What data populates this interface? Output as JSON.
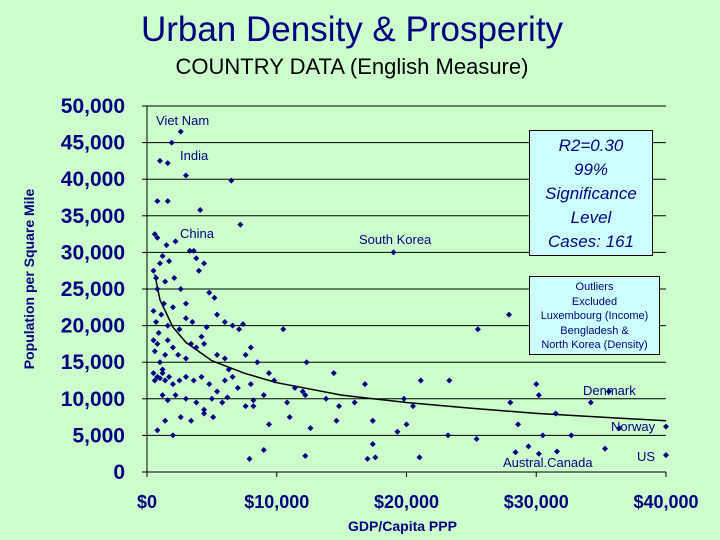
{
  "header": {
    "title": "Urban Density & Prosperity",
    "subtitle": "COUNTRY DATA (English Measure)"
  },
  "stats_box": {
    "lines": [
      "R2=0.30",
      "99%",
      "Significance",
      "Level",
      "Cases: 161"
    ]
  },
  "outliers_box": {
    "lines": [
      "Outliers",
      "Excluded",
      "Luxembourg (Income)",
      "Bengladesh &",
      "North Korea (Density)"
    ]
  },
  "colors": {
    "background": "#ccffcc",
    "marker": "#000080",
    "grid": "#000000",
    "box": "#ccffff"
  },
  "chart_data": {
    "type": "scatter",
    "xlabel": "GDP/Capita PPP",
    "ylabel": "Population per Square Mile",
    "xlim": [
      0,
      40000
    ],
    "ylim": [
      0,
      50000
    ],
    "x_ticks": [
      "$0",
      "$10,000",
      "$20,000",
      "$30,000",
      "$40,000"
    ],
    "y_ticks": [
      "0",
      "5,000",
      "10,000",
      "15,000",
      "20,000",
      "25,000",
      "30,000",
      "35,000",
      "40,000",
      "45,000",
      "50,000"
    ],
    "grid": "horizontal",
    "annotations": [
      {
        "text": "Viet Nam",
        "x": 2600,
        "y": 46500
      },
      {
        "text": "India",
        "x": 2700,
        "y": 40500
      },
      {
        "text": "China",
        "x": 3300,
        "y": 30200
      },
      {
        "text": "South Korea",
        "x": 19000,
        "y": 30000
      },
      {
        "text": "Denmark",
        "x": 34000,
        "y": 9500
      },
      {
        "text": "Norway",
        "x": 40000,
        "y": 6200
      },
      {
        "text": "US",
        "x": 40000,
        "y": 2300
      },
      {
        "text": "Austral.Canada",
        "x": 30000,
        "y": 2700
      }
    ],
    "trendline": {
      "type": "power",
      "x": [
        600,
        1000,
        2000,
        3000,
        5000,
        7500,
        10000,
        15000,
        20000,
        25000,
        30000,
        35000,
        40000
      ],
      "y": [
        27000,
        23500,
        19800,
        17700,
        15200,
        13500,
        12200,
        10500,
        9500,
        8700,
        8000,
        7500,
        7000
      ]
    },
    "series": [
      {
        "points": [
          [
            600,
            32500
          ],
          [
            800,
            32000
          ],
          [
            800,
            37000
          ],
          [
            1000,
            42500
          ],
          [
            1600,
            37000
          ],
          [
            1600,
            42200
          ],
          [
            1900,
            45000
          ],
          [
            2600,
            46500
          ],
          [
            3000,
            40500
          ],
          [
            4100,
            35800
          ],
          [
            6500,
            39800
          ],
          [
            7200,
            33800
          ],
          [
            3300,
            30200
          ],
          [
            3600,
            30200
          ],
          [
            19000,
            30000
          ],
          [
            500,
            27500
          ],
          [
            700,
            26500
          ],
          [
            800,
            25000
          ],
          [
            1000,
            28500
          ],
          [
            1200,
            29500
          ],
          [
            1400,
            26000
          ],
          [
            1700,
            28800
          ],
          [
            2100,
            26500
          ],
          [
            2600,
            25000
          ],
          [
            3000,
            23000
          ],
          [
            4000,
            27500
          ],
          [
            4400,
            28500
          ],
          [
            4800,
            24500
          ],
          [
            5200,
            23800
          ],
          [
            1500,
            31000
          ],
          [
            2200,
            31500
          ],
          [
            3800,
            29200
          ],
          [
            500,
            22000
          ],
          [
            700,
            20500
          ],
          [
            900,
            19000
          ],
          [
            1100,
            21500
          ],
          [
            1300,
            23000
          ],
          [
            1600,
            20000
          ],
          [
            2000,
            22500
          ],
          [
            2500,
            19500
          ],
          [
            3000,
            21000
          ],
          [
            3500,
            20500
          ],
          [
            4200,
            18500
          ],
          [
            4600,
            19800
          ],
          [
            5400,
            21500
          ],
          [
            6000,
            20500
          ],
          [
            6600,
            20000
          ],
          [
            7100,
            19500
          ],
          [
            7400,
            20200
          ],
          [
            10500,
            19500
          ],
          [
            25500,
            19500
          ],
          [
            27900,
            21500
          ],
          [
            500,
            18000
          ],
          [
            600,
            16500
          ],
          [
            800,
            17500
          ],
          [
            1000,
            15000
          ],
          [
            1200,
            14000
          ],
          [
            1400,
            16000
          ],
          [
            1600,
            18000
          ],
          [
            2000,
            17000
          ],
          [
            2400,
            16000
          ],
          [
            3000,
            15500
          ],
          [
            3400,
            17500
          ],
          [
            3800,
            17000
          ],
          [
            4400,
            17500
          ],
          [
            5400,
            16000
          ],
          [
            6000,
            15500
          ],
          [
            6300,
            14000
          ],
          [
            7600,
            16000
          ],
          [
            8000,
            17000
          ],
          [
            8500,
            15000
          ],
          [
            12300,
            15000
          ],
          [
            500,
            13500
          ],
          [
            600,
            12500
          ],
          [
            800,
            13000
          ],
          [
            1000,
            12800
          ],
          [
            1200,
            13500
          ],
          [
            1400,
            12500
          ],
          [
            1700,
            13000
          ],
          [
            2000,
            12000
          ],
          [
            2500,
            12500
          ],
          [
            3000,
            13000
          ],
          [
            3600,
            12500
          ],
          [
            4200,
            13000
          ],
          [
            4800,
            12000
          ],
          [
            5400,
            11000
          ],
          [
            6000,
            12500
          ],
          [
            6600,
            13000
          ],
          [
            7000,
            11500
          ],
          [
            8000,
            12000
          ],
          [
            9400,
            13500
          ],
          [
            9800,
            12500
          ],
          [
            11400,
            11500
          ],
          [
            12000,
            11000
          ],
          [
            14400,
            13500
          ],
          [
            16800,
            12000
          ],
          [
            21100,
            12500
          ],
          [
            23300,
            12500
          ],
          [
            30000,
            12000
          ],
          [
            1200,
            10500
          ],
          [
            1600,
            9800
          ],
          [
            2200,
            10500
          ],
          [
            3000,
            10000
          ],
          [
            3800,
            9500
          ],
          [
            4400,
            8500
          ],
          [
            5000,
            10000
          ],
          [
            5800,
            9500
          ],
          [
            6200,
            10200
          ],
          [
            7600,
            9000
          ],
          [
            8200,
            9800
          ],
          [
            9000,
            10500
          ],
          [
            10800,
            9500
          ],
          [
            12200,
            10500
          ],
          [
            13800,
            10000
          ],
          [
            14800,
            9000
          ],
          [
            16000,
            9500
          ],
          [
            19800,
            10000
          ],
          [
            20500,
            9000
          ],
          [
            28000,
            9500
          ],
          [
            30200,
            10500
          ],
          [
            34200,
            9500
          ],
          [
            35600,
            11000
          ],
          [
            800,
            5700
          ],
          [
            1400,
            7000
          ],
          [
            2000,
            5000
          ],
          [
            2600,
            7500
          ],
          [
            3400,
            7000
          ],
          [
            4400,
            8000
          ],
          [
            5100,
            7500
          ],
          [
            8200,
            9000
          ],
          [
            9400,
            6500
          ],
          [
            11000,
            7500
          ],
          [
            12600,
            6000
          ],
          [
            14600,
            7000
          ],
          [
            17400,
            7000
          ],
          [
            19300,
            5500
          ],
          [
            20000,
            6500
          ],
          [
            23200,
            5000
          ],
          [
            25400,
            4500
          ],
          [
            28600,
            6500
          ],
          [
            30500,
            5000
          ],
          [
            31500,
            8000
          ],
          [
            32700,
            5000
          ],
          [
            36400,
            6000
          ],
          [
            40000,
            6200
          ],
          [
            7900,
            1800
          ],
          [
            9000,
            3000
          ],
          [
            12200,
            2200
          ],
          [
            17000,
            1800
          ],
          [
            17600,
            2000
          ],
          [
            21000,
            2000
          ],
          [
            28400,
            2700
          ],
          [
            30200,
            2500
          ],
          [
            31600,
            2800
          ],
          [
            35300,
            3200
          ],
          [
            40000,
            2300
          ],
          [
            17400,
            3800
          ],
          [
            29400,
            3500
          ]
        ]
      }
    ]
  },
  "plot": {
    "y_tick_values": [
      0,
      5000,
      10000,
      15000,
      20000,
      25000,
      30000,
      35000,
      40000,
      45000,
      50000
    ],
    "x_tick_values": [
      0,
      10000,
      20000,
      30000,
      40000
    ]
  }
}
